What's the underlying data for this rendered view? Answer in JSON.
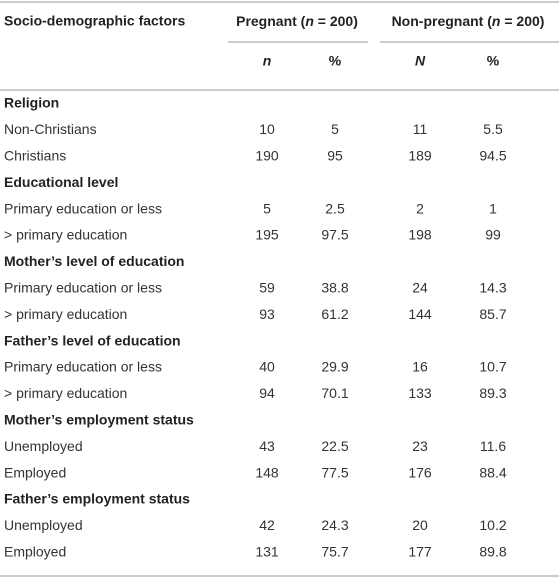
{
  "header": {
    "label": "Socio-demographic factors",
    "groups": [
      [
        "Pregnant (",
        "n",
        " = 200)"
      ],
      [
        "Non-pregnant (",
        "n",
        " = 200)"
      ]
    ],
    "subheaders": [
      "n",
      "%",
      "N",
      "%"
    ]
  },
  "sections": [
    {
      "title": "Religion",
      "rows": [
        {
          "label": "Non-Christians",
          "values": [
            10,
            5,
            11,
            5.5
          ]
        },
        {
          "label": "Christians",
          "values": [
            190,
            95,
            189,
            94.5
          ]
        }
      ]
    },
    {
      "title": "Educational level",
      "rows": [
        {
          "label": "Primary education or less",
          "values": [
            5,
            2.5,
            2,
            1
          ]
        },
        {
          "label": "> primary education",
          "values": [
            195,
            97.5,
            198,
            99
          ]
        }
      ]
    },
    {
      "title": "Mother’s level of education",
      "rows": [
        {
          "label": "Primary education or less",
          "values": [
            59,
            38.8,
            24,
            14.3
          ]
        },
        {
          "label": "> primary education",
          "values": [
            93,
            61.2,
            144,
            85.7
          ]
        }
      ]
    },
    {
      "title": "Father’s level of education",
      "rows": [
        {
          "label": "Primary education or less",
          "values": [
            40,
            29.9,
            16,
            10.7
          ]
        },
        {
          "label": "> primary education",
          "values": [
            94,
            70.1,
            133,
            89.3
          ]
        }
      ]
    },
    {
      "title": "Mother’s employment status",
      "rows": [
        {
          "label": "Unemployed",
          "values": [
            43,
            22.5,
            23,
            11.6
          ]
        },
        {
          "label": "Employed",
          "values": [
            148,
            77.5,
            176,
            88.4
          ]
        }
      ]
    },
    {
      "title": "Father’s employment status",
      "rows": [
        {
          "label": "Unemployed",
          "values": [
            42,
            24.3,
            20,
            10.2
          ]
        },
        {
          "label": "Employed",
          "values": [
            131,
            75.7,
            177,
            89.8
          ]
        }
      ]
    }
  ]
}
